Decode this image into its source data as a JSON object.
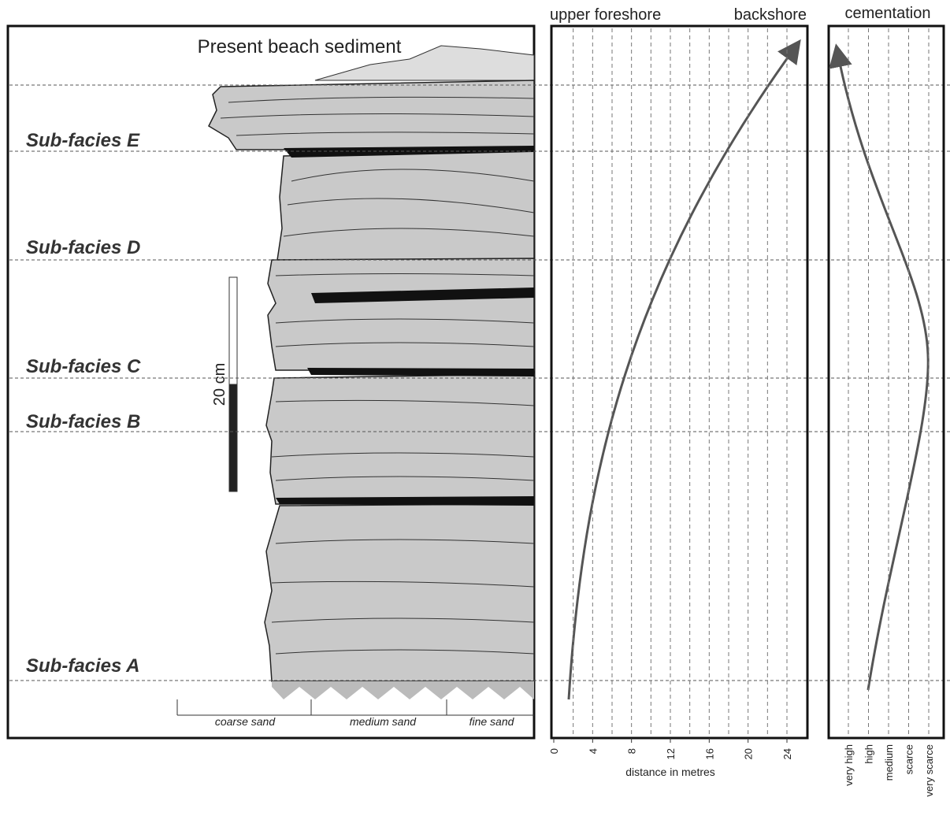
{
  "log_panel": {
    "title": "Present beach sediment",
    "subfacies": [
      "Sub-facies E",
      "Sub-facies D",
      "Sub-facies C",
      "Sub-facies B",
      "Sub-facies A"
    ],
    "scale_label": "20 cm",
    "grain_sizes": [
      "coarse sand",
      "medium sand",
      "fine sand"
    ]
  },
  "distance_panel": {
    "top_labels": [
      "upper foreshore",
      "backshore"
    ],
    "ticks": [
      0,
      4,
      8,
      12,
      16,
      20,
      24
    ],
    "axis_label": "distance in metres"
  },
  "cementation_panel": {
    "title": "cementation",
    "ticks": [
      "very high",
      "high",
      "medium",
      "scarce",
      "very scarce"
    ]
  }
}
